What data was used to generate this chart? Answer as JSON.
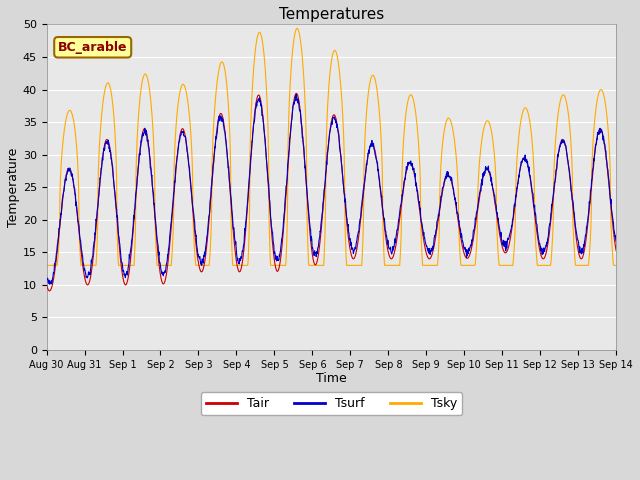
{
  "title": "Temperatures",
  "xlabel": "Time",
  "ylabel": "Temperature",
  "ylim": [
    0,
    50
  ],
  "xlim_days": 15,
  "color_tair": "#cc0000",
  "color_tsurf": "#0000cc",
  "color_tsky": "#ffaa00",
  "legend_label": "BC_arable",
  "legend_box_color": "#ffff99",
  "legend_box_edgecolor": "#996600",
  "bg_color": "#e8e8e8",
  "grid_color": "#ffffff",
  "tick_labels": [
    "Aug 30",
    "Aug 31",
    "Sep 1",
    "Sep 2",
    "Sep 3",
    "Sep 4",
    "Sep 5",
    "Sep 6",
    "Sep 7",
    "Sep 8",
    "Sep 9",
    "Sep 10",
    "Sep 11",
    "Sep 12",
    "Sep 13",
    "Sep 14"
  ],
  "tick_positions": [
    0,
    1,
    2,
    3,
    4,
    5,
    6,
    7,
    8,
    9,
    10,
    11,
    12,
    13,
    14,
    15
  ]
}
